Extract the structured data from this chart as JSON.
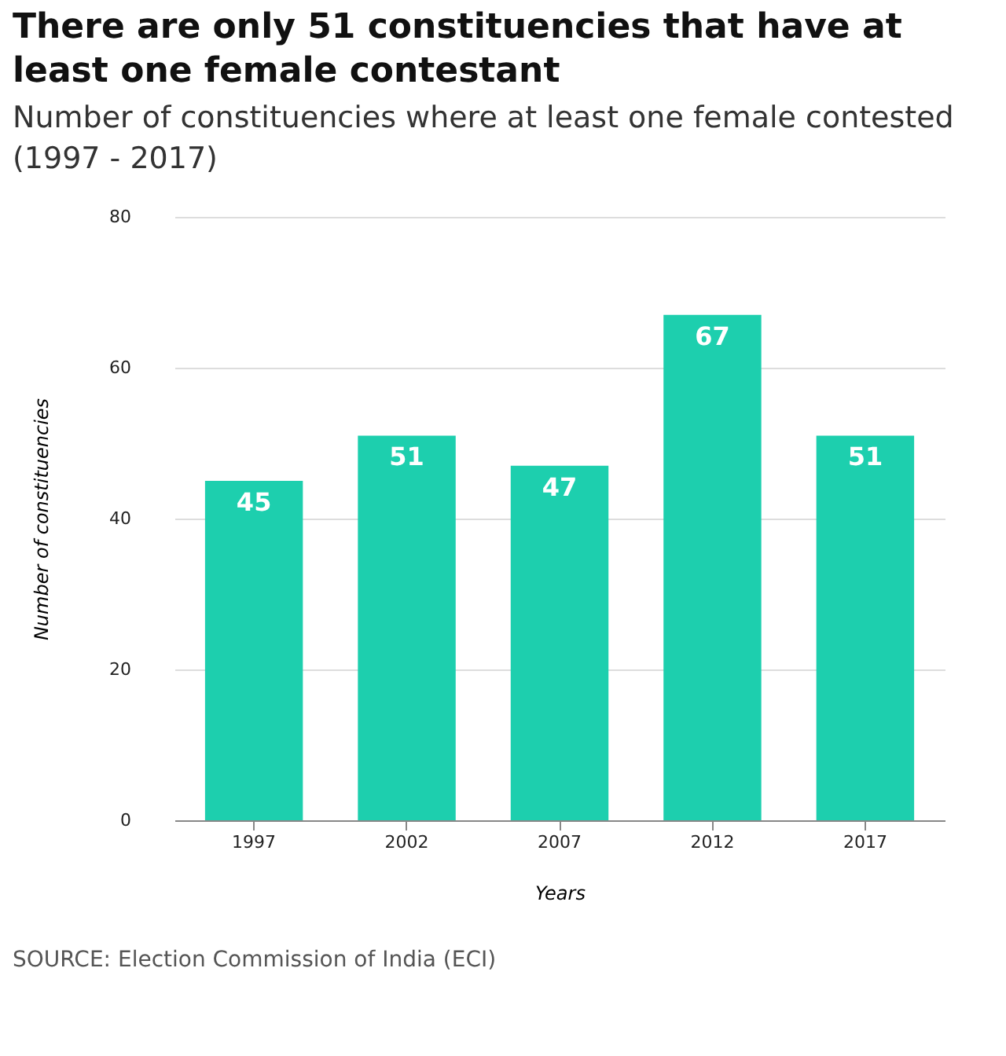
{
  "chart_data": {
    "type": "bar",
    "title": "There are only 51 constituencies that have at least one female contestant",
    "subtitle": "Number of constituencies where at least one female contested (1997 - 2017)",
    "xlabel": "Years",
    "ylabel": "Number of constituencies",
    "categories": [
      "1997",
      "2002",
      "2007",
      "2012",
      "2017"
    ],
    "values": [
      45,
      51,
      47,
      67,
      51
    ],
    "color": "#1dcfae",
    "ylim": [
      0,
      80
    ],
    "yticks": [
      0,
      20,
      40,
      60,
      80
    ],
    "grid": "y",
    "data_labels": true,
    "annotations": [
      "SOURCE: Election Commission of India (ECI)"
    ]
  }
}
